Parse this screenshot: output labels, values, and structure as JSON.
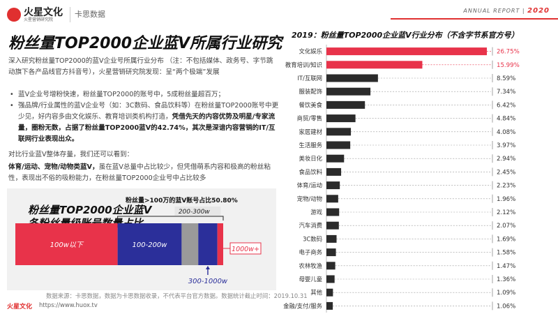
{
  "header": {
    "brand_name": "火星文化",
    "brand_sub": "火星营销研究院",
    "partner": "卡思数据",
    "report_label": "ANNUAL REPORT",
    "report_year": "2020"
  },
  "page_title": "粉丝量TOP2000企业蓝V所属行业研究",
  "intro": "深入研究粉丝量TOP2000的蓝V企业号所属行业分布 （注：不包括媒体、政务号、字节跳动旗下各产品线官方抖音号），火星营销研究院发现：呈“两个极端”发展",
  "bullets": [
    {
      "text": "蓝V企业号增粉快速，粉丝量TOP2000的账号中，5成粉丝量超百万；",
      "bold": ""
    },
    {
      "text": "强品牌/行业属性的蓝V企业号（如：3C数码、食品饮料等）在粉丝量TOP2000账号中更少见，好内容多由文化娱乐、教育培训类机构打造，",
      "bold": "凭借先天的内容优势及明星/专家流量，圈粉无数，占据了粉丝量TOP2000蓝V的42.74%，其次是深谙内容营销的IT/互联网行业表现出众。"
    }
  ],
  "compare_lead": "对比行业蓝V整体存量，我们还可以看到：",
  "compare_bold": "体育/运动、宠物/动物类蓝V，",
  "compare_text": "虽在蓝V总量中占比较少，但凭借萌系内容和极高的粉丝粘性，表现出不俗的吸粉能力，在粉丝量TOP2000企业号中占比较多",
  "source_note": "数据来源：卡思数据，数据为卡思数据收录，不代表平台官方数据。数据统计截止时间：2019.10.31",
  "footer": {
    "brand": "火星文化",
    "url": "https://www.huox.tv"
  },
  "stack_chart": {
    "title_line1": "粉丝量TOP2000企业蓝V",
    "title_line2": "各粉丝量级账号数量占比",
    "annotation_top": "粉丝量>100万的蓝V账号占比50.80%",
    "segments": [
      {
        "label": "100w以下",
        "color": "#e8334a"
      },
      {
        "label": "100-200w",
        "color": "#2b2f9a"
      },
      {
        "label": "200-300w",
        "color": "#9a9a9a"
      },
      {
        "label": "300-1000w",
        "color": "#2b2f9a"
      },
      {
        "label": "1000w+",
        "color": "#e8334a"
      }
    ],
    "shares": [
      49.2,
      30.8,
      8.0,
      9.2,
      2.8
    ]
  },
  "chart_data": {
    "type": "bar",
    "title": "2019：粉丝量TOP2000企业蓝V行业分布（不含字节系官方号）",
    "categories": [
      "文化娱乐",
      "教育培训/知识",
      "IT/互联网",
      "服装配饰",
      "餐饮美食",
      "商贸/零售",
      "家居建材",
      "生活服务",
      "美妆日化",
      "食品饮料",
      "体育/运动",
      "宠物/动物",
      "游戏",
      "汽车消费",
      "3C数码",
      "电子商务",
      "农林牧渔",
      "母婴儿童",
      "其他",
      "金融/支付/服务"
    ],
    "values": [
      26.75,
      15.99,
      8.59,
      7.34,
      6.42,
      4.84,
      4.08,
      3.97,
      2.94,
      2.45,
      2.23,
      1.96,
      2.12,
      2.07,
      1.69,
      1.58,
      1.47,
      1.36,
      1.09,
      1.06
    ],
    "value_labels": [
      "26.75%",
      "15.99%",
      "8.59%",
      "7.34%",
      "6.42%",
      "4.84%",
      "4.08%",
      "3.97%",
      "2.94%",
      "2.45%",
      "2.23%",
      "1.96%",
      "2.12%",
      "2.07%",
      "1.69%",
      "1.58%",
      "1.47%",
      "1.36%",
      "1.09%",
      "1.06%"
    ],
    "highlight_count": 2,
    "colors": {
      "highlight": "#e8334a",
      "normal": "#2b2b2b"
    },
    "orientation": "horizontal"
  }
}
